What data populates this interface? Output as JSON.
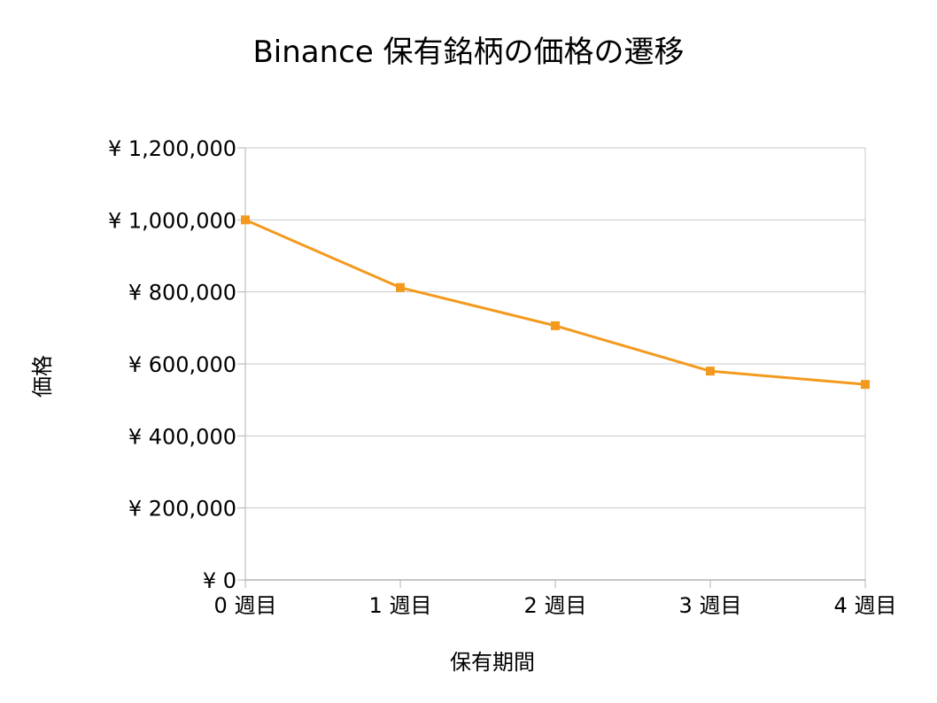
{
  "chart_data": {
    "type": "line",
    "title": "Binance 保有銘柄の価格の遷移",
    "xlabel": "保有期間",
    "ylabel": "価格",
    "categories": [
      "0 週目",
      "1 週目",
      "2 週目",
      "3 週目",
      "4 週目"
    ],
    "series": [
      {
        "values": [
          1000000,
          812000,
          706000,
          580000,
          543000
        ]
      }
    ],
    "ylim": [
      0,
      1200000
    ],
    "yticks": [
      0,
      200000,
      400000,
      600000,
      800000,
      1000000,
      1200000
    ],
    "ytick_labels": [
      "¥ 0",
      "¥ 200,000",
      "¥ 400,000",
      "¥ 600,000",
      "¥ 800,000",
      "¥ 1,000,000",
      "¥ 1,200,000"
    ],
    "grid": true,
    "legend": "none",
    "colors": {
      "series": "#f39a1e",
      "grid": "#c8c8c8",
      "axis": "#b3b3b3"
    }
  }
}
